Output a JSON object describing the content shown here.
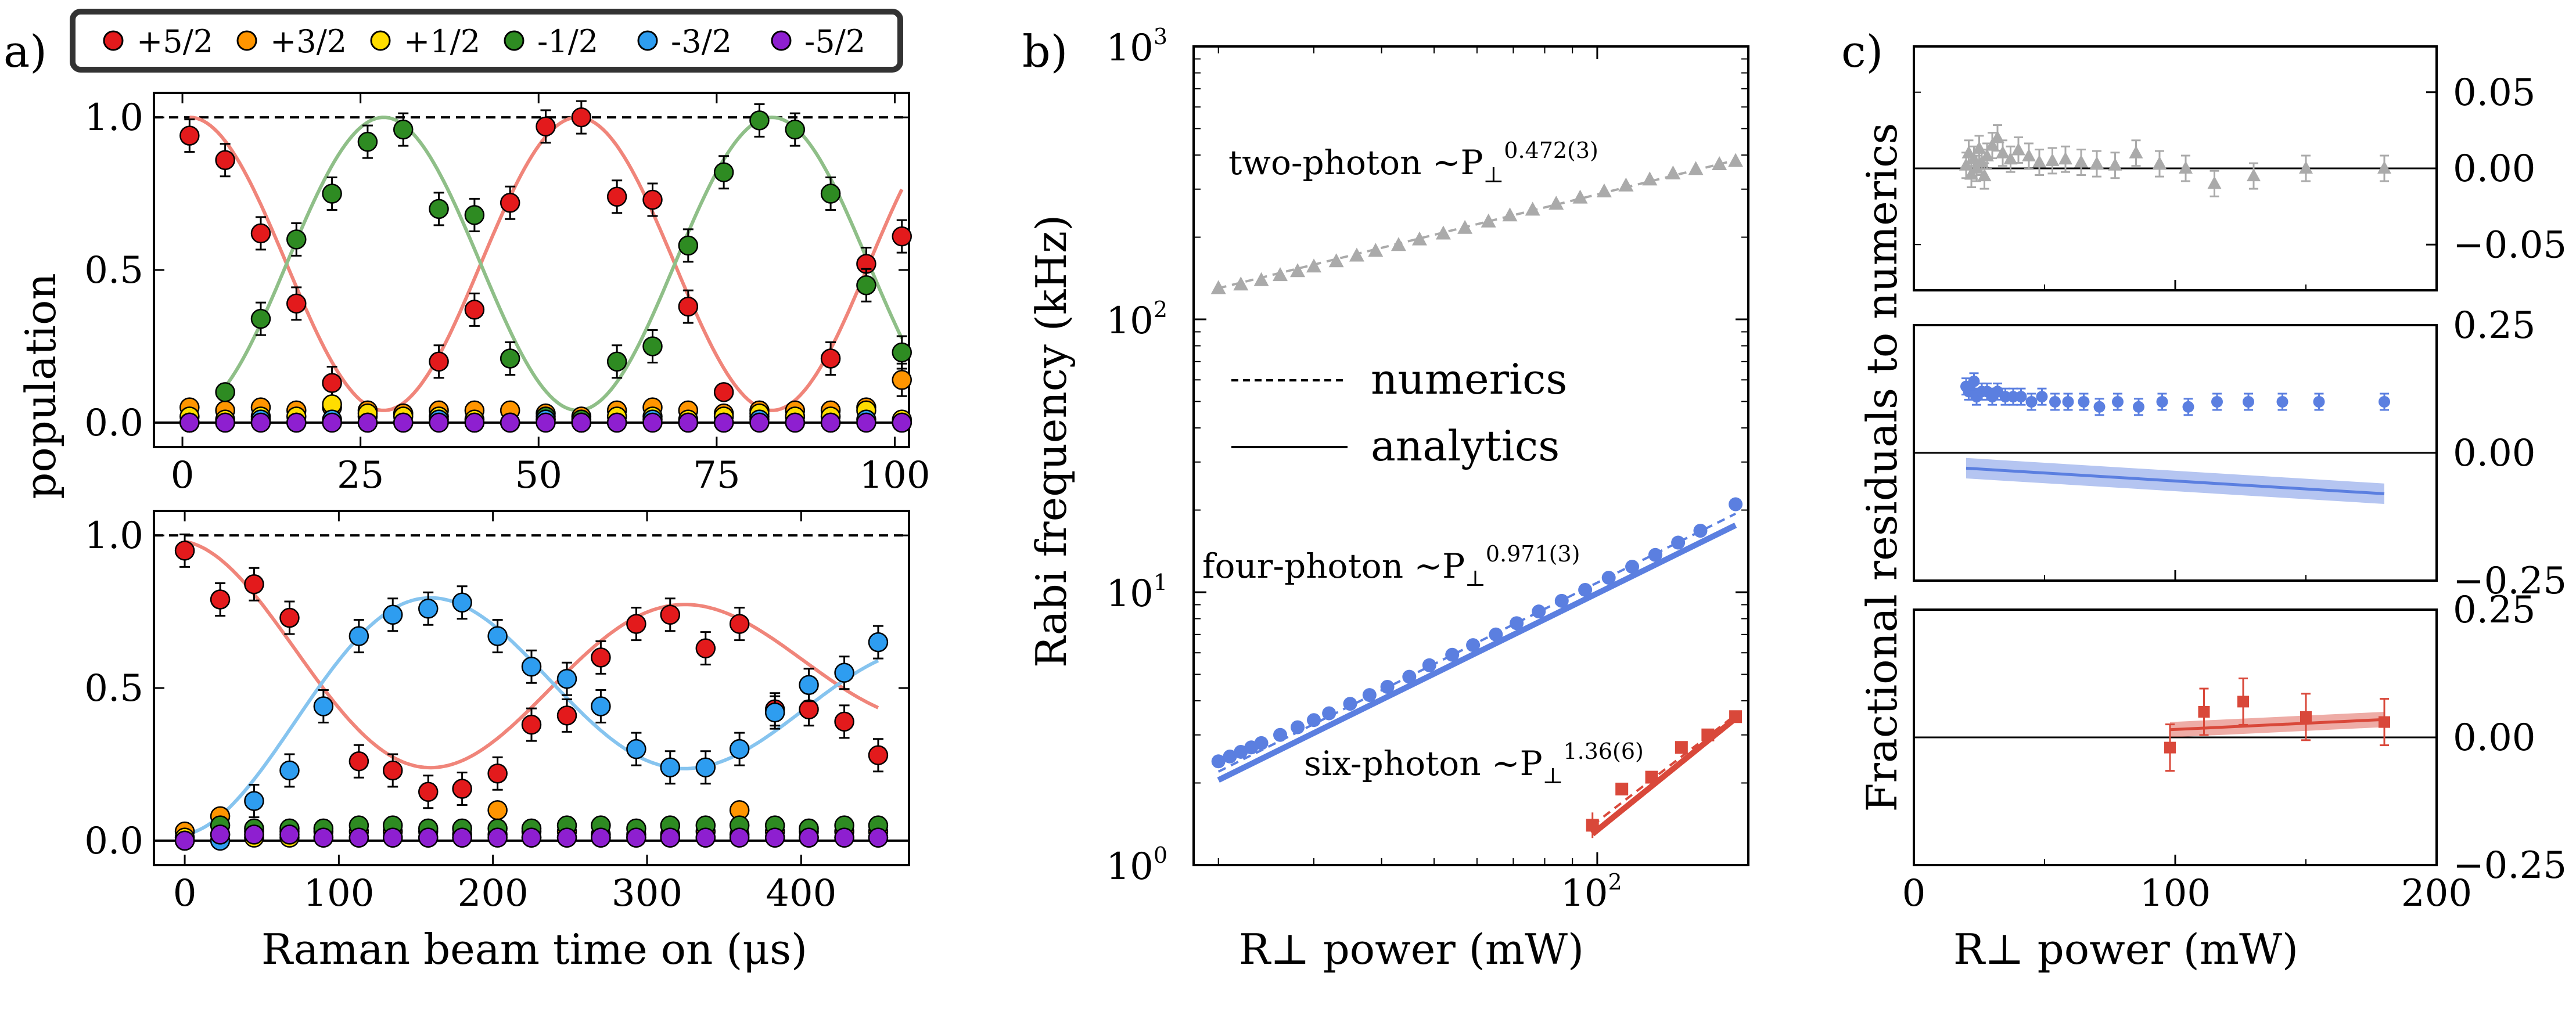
{
  "panel_labels": {
    "a": "a)",
    "b": "b)",
    "c": "c)"
  },
  "legend_a": {
    "entries": [
      {
        "label": "+5/2",
        "color": "#e31a1c"
      },
      {
        "label": "+3/2",
        "color": "#ff9500"
      },
      {
        "label": "+1/2",
        "color": "#ffdd00"
      },
      {
        "label": "-1/2",
        "color": "#2e8b22"
      },
      {
        "label": "-3/2",
        "color": "#2e9df0"
      },
      {
        "label": "-5/2",
        "color": "#8e1fd0"
      }
    ]
  },
  "legend_b": {
    "numerics": "numerics",
    "analytics": "analytics"
  },
  "annotations_b": {
    "two": {
      "text": "two-photon ~P",
      "sub": "⊥",
      "sup": "0.472(3)",
      "color": "#999999"
    },
    "four": {
      "text": "four-photon ~P",
      "sub": "⊥",
      "sup": "0.971(3)",
      "color": "#4a6fd0"
    },
    "six": {
      "text": "six-photon ~P",
      "sub": "⊥",
      "sup": "1.36(6)",
      "color": "#d04030"
    }
  },
  "colors": {
    "red": "#e31a1c",
    "orange": "#ff9500",
    "yellow": "#ffdd00",
    "green": "#2e8b22",
    "blue": "#2e9df0",
    "purple": "#8e1fd0",
    "gray": "#aaaaaa",
    "royal": "#5b7fe0",
    "brick": "#d9483a"
  },
  "chart_data": [
    {
      "id": "a1",
      "type": "scatter",
      "title": "",
      "xlabel": "",
      "ylabel": "population",
      "xlim": [
        -4,
        102
      ],
      "ylim": [
        -0.08,
        1.08
      ],
      "xticks": [
        0,
        25,
        50,
        75,
        100
      ],
      "yticks": [
        0.0,
        0.5,
        1.0
      ],
      "xtick_labels": [
        "0",
        "25",
        "50",
        "75",
        "100"
      ],
      "ytick_labels": [
        "0.0",
        "0.5",
        "1.0"
      ],
      "x": [
        1,
        6,
        11,
        16,
        21,
        26,
        31,
        36,
        41,
        46,
        51,
        56,
        61,
        66,
        71,
        76,
        81,
        86,
        91,
        96,
        101
      ],
      "series": [
        {
          "name": "+5/2",
          "values": [
            0.94,
            0.86,
            0.62,
            0.39,
            0.13,
            0.02,
            0.03,
            0.2,
            0.37,
            0.72,
            0.97,
            1.0,
            0.74,
            0.73,
            0.38,
            0.1,
            0.02,
            0.02,
            0.21,
            0.52,
            0.61
          ]
        },
        {
          "name": "+3/2",
          "values": [
            0.05,
            0.04,
            0.05,
            0.04,
            0.05,
            0.04,
            0.03,
            0.04,
            0.04,
            0.04,
            0.03,
            0.02,
            0.04,
            0.05,
            0.04,
            0.03,
            0.04,
            0.04,
            0.04,
            0.05,
            0.14
          ]
        },
        {
          "name": "+1/2",
          "values": [
            0.02,
            0.01,
            0.02,
            0.02,
            0.06,
            0.03,
            0.02,
            0.02,
            0.01,
            0.0,
            0.01,
            0.0,
            0.02,
            0.02,
            0.01,
            0.02,
            0.03,
            0.02,
            0.02,
            0.04,
            0.01
          ]
        },
        {
          "name": "-1/2",
          "values": [
            0.0,
            0.1,
            0.34,
            0.6,
            0.75,
            0.92,
            0.96,
            0.7,
            0.68,
            0.21,
            0.02,
            0.01,
            0.2,
            0.25,
            0.58,
            0.82,
            0.99,
            0.96,
            0.75,
            0.45,
            0.23
          ]
        },
        {
          "name": "-3/2",
          "values": [
            0.0,
            0.0,
            0.01,
            0.0,
            0.01,
            0.0,
            0.0,
            0.01,
            0.0,
            0.0,
            0.01,
            0.0,
            0.0,
            0.01,
            0.0,
            0.0,
            0.01,
            0.0,
            0.0,
            0.01,
            0.0
          ]
        },
        {
          "name": "-5/2",
          "values": [
            0.0,
            0.0,
            0.0,
            0.0,
            0.0,
            0.0,
            0.0,
            0.0,
            0.0,
            0.0,
            0.0,
            0.0,
            0.0,
            0.0,
            0.0,
            0.0,
            0.0,
            0.0,
            0.0,
            0.0,
            0.0
          ]
        }
      ],
      "fits": [
        {
          "name": "+5/2 fit",
          "amp": 0.48,
          "offset": 0.52,
          "period": 54.5,
          "phase": 0,
          "xrange": [
            1,
            101
          ]
        },
        {
          "name": "-1/2 fit",
          "amp": -0.48,
          "offset": 0.52,
          "period": 54.5,
          "phase": 0,
          "xrange": [
            5,
            101
          ]
        }
      ],
      "reference_line": 1.0
    },
    {
      "id": "a2",
      "type": "scatter",
      "title": "",
      "xlabel": "Raman beam time on (μs)",
      "ylabel": "population",
      "xlim": [
        -20,
        470
      ],
      "ylim": [
        -0.08,
        1.08
      ],
      "xticks": [
        0,
        100,
        200,
        300,
        400
      ],
      "yticks": [
        0.0,
        0.5,
        1.0
      ],
      "xtick_labels": [
        "0",
        "100",
        "200",
        "300",
        "400"
      ],
      "ytick_labels": [
        "0.0",
        "0.5",
        "1.0"
      ],
      "x": [
        0,
        23,
        45,
        68,
        90,
        113,
        135,
        158,
        180,
        203,
        225,
        248,
        270,
        293,
        315,
        338,
        360,
        383,
        405,
        428,
        450
      ],
      "series": [
        {
          "name": "+5/2",
          "values": [
            0.95,
            0.79,
            0.84,
            0.73,
            null,
            0.26,
            0.23,
            0.16,
            0.17,
            0.22,
            0.38,
            0.41,
            0.6,
            0.71,
            0.74,
            0.63,
            0.71,
            0.43,
            0.43,
            0.39,
            0.28
          ]
        },
        {
          "name": "+3/2",
          "values": [
            0.03,
            0.08,
            0.03,
            0.03,
            0.03,
            0.03,
            0.03,
            0.03,
            0.02,
            0.1,
            0.03,
            0.03,
            0.02,
            0.02,
            0.02,
            0.03,
            0.1,
            0.03,
            0.03,
            0.03,
            0.03
          ]
        },
        {
          "name": "+1/2",
          "values": [
            0.01,
            0.02,
            0.01,
            0.01,
            0.01,
            0.01,
            0.01,
            0.01,
            0.01,
            0.02,
            0.01,
            0.01,
            0.01,
            0.01,
            0.01,
            0.01,
            0.02,
            0.01,
            0.01,
            0.01,
            0.01
          ]
        },
        {
          "name": "-1/2",
          "values": [
            0.0,
            0.05,
            0.04,
            0.04,
            0.04,
            0.05,
            0.05,
            0.04,
            0.04,
            0.04,
            0.04,
            0.05,
            0.05,
            0.04,
            0.05,
            0.05,
            0.05,
            0.05,
            0.04,
            0.05,
            0.05
          ]
        },
        {
          "name": "-3/2",
          "values": [
            0.0,
            0.0,
            0.13,
            0.23,
            0.44,
            0.67,
            0.74,
            0.76,
            0.78,
            0.67,
            0.57,
            0.53,
            0.44,
            0.3,
            0.24,
            0.24,
            0.3,
            0.42,
            0.51,
            0.55,
            0.65
          ]
        },
        {
          "name": "-5/2",
          "values": [
            0.0,
            0.02,
            0.02,
            0.02,
            0.01,
            0.01,
            0.01,
            0.01,
            0.01,
            0.01,
            0.01,
            0.01,
            0.01,
            0.01,
            0.01,
            0.01,
            0.01,
            0.01,
            0.01,
            0.01,
            0.01
          ]
        }
      ],
      "fits": [
        {
          "name": "+5/2 fit",
          "kind": "damped",
          "offset": 0.55,
          "amp": 0.43,
          "period": 330,
          "decay": 500,
          "xrange": [
            0,
            450
          ]
        },
        {
          "name": "-3/2 fit",
          "kind": "damped",
          "offset": 0.47,
          "amp": -0.45,
          "period": 330,
          "decay": 500,
          "xrange": [
            0,
            450
          ]
        }
      ],
      "reference_line": 1.0
    },
    {
      "id": "b",
      "type": "scatter",
      "scale": "log-log",
      "title": "",
      "xlabel": "R⊥ power (mW)",
      "ylabel": "Rabi frequency (kHz)",
      "xlim": [
        18,
        190
      ],
      "ylim": [
        1,
        1000
      ],
      "yticks": [
        1,
        10,
        100,
        1000
      ],
      "ytick_labels": [
        "10",
        "10",
        "10",
        "10"
      ],
      "ytick_exponents": [
        "0",
        "1",
        "2",
        "3"
      ],
      "xticks": [
        100
      ],
      "xtick_labels": [
        "10"
      ],
      "xtick_exponents": [
        "2"
      ],
      "series": [
        {
          "name": "two-photon",
          "marker": "triangle",
          "x": [
            20,
            22,
            24,
            26,
            28,
            30,
            33,
            36,
            39,
            43,
            47,
            52,
            57,
            63,
            69,
            76,
            84,
            93,
            103,
            113,
            125,
            138,
            152,
            168,
            180
          ],
          "values": [
            130,
            134,
            139,
            145,
            150,
            156,
            163,
            171,
            178,
            187,
            196,
            206,
            216,
            228,
            240,
            252,
            265,
            279,
            294,
            309,
            325,
            342,
            355,
            370,
            380
          ]
        },
        {
          "name": "four-photon",
          "marker": "circle",
          "x": [
            20,
            21,
            22,
            23,
            24,
            26,
            28,
            30,
            32,
            35,
            38,
            41,
            45,
            49,
            54,
            59,
            65,
            71,
            78,
            86,
            95,
            105,
            116,
            128,
            141,
            155,
            180
          ],
          "values": [
            2.4,
            2.5,
            2.6,
            2.7,
            2.8,
            3.0,
            3.2,
            3.4,
            3.6,
            3.9,
            4.2,
            4.5,
            4.9,
            5.4,
            5.9,
            6.4,
            7.0,
            7.7,
            8.5,
            9.3,
            10.2,
            11.3,
            12.4,
            13.7,
            15.2,
            16.8,
            21.0
          ]
        },
        {
          "name": "six-photon",
          "marker": "square",
          "x": [
            98,
            111,
            126,
            143,
            160,
            180
          ],
          "values": [
            1.4,
            1.9,
            2.1,
            2.7,
            3.0,
            3.5
          ]
        }
      ],
      "lines": [
        {
          "name": "two-photon numerics",
          "style": "dashed",
          "x0": 20,
          "y0": 130,
          "x1": 180,
          "y1": 383
        },
        {
          "name": "four-photon numerics",
          "style": "dashed",
          "x0": 20,
          "y0": 2.2,
          "x1": 180,
          "y1": 19.4
        },
        {
          "name": "four-photon analytics",
          "style": "solid",
          "x0": 20,
          "y0": 2.05,
          "x1": 180,
          "y1": 17.6
        },
        {
          "name": "six-photon numerics",
          "style": "dashed",
          "x0": 98,
          "y0": 1.4,
          "x1": 180,
          "y1": 3.55
        },
        {
          "name": "six-photon analytics",
          "style": "solid",
          "x0": 98,
          "y0": 1.3,
          "x1": 180,
          "y1": 3.45
        }
      ]
    },
    {
      "id": "c1",
      "type": "scatter",
      "title": "",
      "xlabel": "",
      "ylabel": "Fractional residuals to numerics",
      "xlim": [
        0,
        200
      ],
      "ylim": [
        -0.08,
        0.08
      ],
      "yticks": [
        -0.05,
        0.0,
        0.05
      ],
      "ytick_labels": [
        "−0.05",
        "0.00",
        "0.05"
      ],
      "series": [
        {
          "name": "two-photon",
          "marker": "triangle",
          "x": [
            20,
            21,
            22,
            23,
            24,
            25,
            26,
            27,
            28,
            30,
            32,
            34,
            37,
            40,
            44,
            48,
            53,
            58,
            64,
            70,
            77,
            85,
            94,
            104,
            115,
            130,
            150,
            180
          ],
          "values": [
            0.002,
            0.01,
            -0.004,
            0.006,
            0.0,
            0.013,
            0.004,
            -0.005,
            0.008,
            0.015,
            0.02,
            0.01,
            0.006,
            0.012,
            0.008,
            0.004,
            0.005,
            0.006,
            0.004,
            0.003,
            0.002,
            0.01,
            0.003,
            0.0,
            -0.01,
            -0.005,
            0.0,
            0.0
          ]
        }
      ],
      "reference_line": 0.0
    },
    {
      "id": "c2",
      "type": "scatter",
      "title": "",
      "xlabel": "",
      "ylabel": "",
      "xlim": [
        0,
        200
      ],
      "ylim": [
        -0.25,
        0.25
      ],
      "yticks": [
        -0.25,
        0.0,
        0.25
      ],
      "ytick_labels": [
        "−0.25",
        "0.00",
        "0.25"
      ],
      "series": [
        {
          "name": "four-photon",
          "marker": "circle",
          "x": [
            20,
            21,
            22,
            23,
            24,
            26,
            28,
            30,
            32,
            35,
            38,
            41,
            45,
            49,
            54,
            59,
            65,
            71,
            78,
            86,
            95,
            105,
            116,
            128,
            141,
            155,
            180
          ],
          "values": [
            0.13,
            0.12,
            0.12,
            0.14,
            0.11,
            0.12,
            0.12,
            0.11,
            0.12,
            0.11,
            0.11,
            0.11,
            0.1,
            0.11,
            0.1,
            0.1,
            0.1,
            0.09,
            0.1,
            0.09,
            0.1,
            0.09,
            0.1,
            0.1,
            0.1,
            0.1,
            0.1
          ]
        }
      ],
      "band": {
        "x0": 20,
        "y0": -0.03,
        "x1": 180,
        "y1": -0.08,
        "halfwidth": 0.02
      },
      "reference_line": 0.0
    },
    {
      "id": "c3",
      "type": "scatter",
      "title": "",
      "xlabel": "R⊥ power (mW)",
      "ylabel": "",
      "xlim": [
        0,
        200
      ],
      "ylim": [
        -0.25,
        0.25
      ],
      "xticks": [
        0,
        100,
        200
      ],
      "xtick_labels": [
        "0",
        "100",
        "200"
      ],
      "yticks": [
        -0.25,
        0.0,
        0.25
      ],
      "ytick_labels": [
        "−0.25",
        "0.00",
        "0.25"
      ],
      "series": [
        {
          "name": "six-photon",
          "marker": "square",
          "x": [
            98,
            111,
            126,
            150,
            180
          ],
          "values": [
            -0.02,
            0.05,
            0.07,
            0.04,
            0.03
          ]
        }
      ],
      "band": {
        "x0": 98,
        "y0": 0.015,
        "x1": 180,
        "y1": 0.035,
        "halfwidth": 0.015
      },
      "reference_line": 0.0
    }
  ]
}
